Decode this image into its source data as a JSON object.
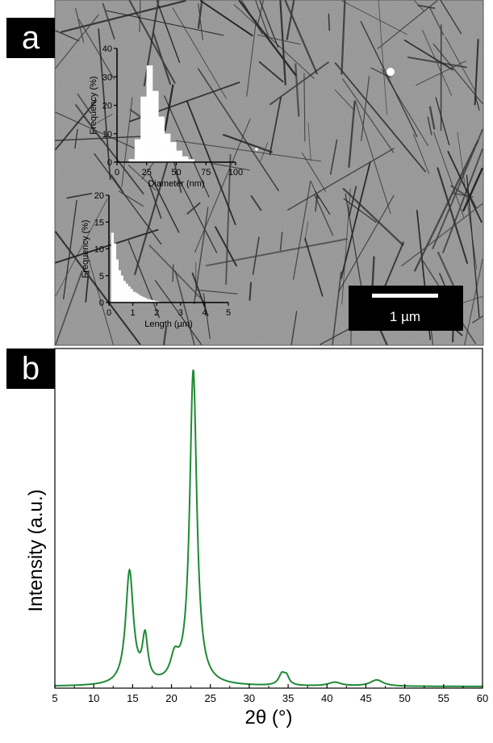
{
  "panel_a": {
    "label": "a",
    "scale_bar": {
      "label": "1 µm"
    },
    "colors": {
      "background": "#8d8d8d",
      "fiber": "#2e2e2e",
      "label_bg": "#000000",
      "label_fg": "#ffffff"
    }
  },
  "panel_b": {
    "label": "b"
  },
  "chart_data": [
    {
      "type": "bar",
      "title": "",
      "xlabel": "Diameter (nm)",
      "ylabel": "Frequency (%)",
      "xlim": [
        0,
        100
      ],
      "ylim": [
        0,
        40
      ],
      "xticks": [
        0,
        25,
        50,
        75,
        100
      ],
      "yticks": [
        0,
        10,
        20,
        30,
        40
      ],
      "bin_edges": [
        10,
        15,
        20,
        25,
        30,
        35,
        40,
        45,
        50,
        55,
        60,
        65
      ],
      "values": [
        1,
        8,
        23,
        34,
        25,
        16,
        10,
        7,
        4,
        2,
        1
      ]
    },
    {
      "type": "bar",
      "title": "",
      "xlabel": "Length (µm)",
      "ylabel": "Frequency (%)",
      "xlim": [
        0,
        5
      ],
      "ylim": [
        0,
        20
      ],
      "xticks": [
        0,
        1,
        2,
        3,
        4,
        5
      ],
      "yticks": [
        0,
        5,
        10,
        15,
        20
      ],
      "bin_edges": [
        0.1,
        0.2,
        0.3,
        0.4,
        0.5,
        0.6,
        0.7,
        0.8,
        0.9,
        1.0,
        1.1,
        1.2,
        1.3,
        1.4,
        1.5,
        1.6,
        1.7,
        1.8,
        1.9,
        2.0,
        2.1
      ],
      "values": [
        13,
        11,
        8,
        6,
        5,
        4,
        3.5,
        3,
        2.5,
        2,
        1.8,
        1.5,
        1.2,
        1,
        0.8,
        0.6,
        0.5,
        0.4,
        0.3,
        0.2
      ]
    },
    {
      "type": "line",
      "title": "",
      "xlabel": "2θ (°)",
      "ylabel": "Intensity (a.u.)",
      "xlim": [
        5,
        60
      ],
      "ylim": [
        0,
        1.08
      ],
      "xticks": [
        5,
        10,
        15,
        20,
        25,
        30,
        35,
        40,
        45,
        50,
        55,
        60
      ],
      "line_color": "#1e8a34",
      "peaks": [
        {
          "x": 14.6,
          "height": 0.36,
          "width": 0.6
        },
        {
          "x": 16.6,
          "height": 0.14,
          "width": 0.42
        },
        {
          "x": 20.4,
          "height": 0.07,
          "width": 0.65
        },
        {
          "x": 22.8,
          "height": 1.0,
          "width": 0.55
        },
        {
          "x": 34.2,
          "height": 0.035,
          "width": 0.5
        },
        {
          "x": 34.8,
          "height": 0.025,
          "width": 0.4
        },
        {
          "x": 41.0,
          "height": 0.012,
          "width": 1.0
        },
        {
          "x": 46.4,
          "height": 0.02,
          "width": 1.0
        }
      ],
      "baseline": 0.005
    }
  ]
}
